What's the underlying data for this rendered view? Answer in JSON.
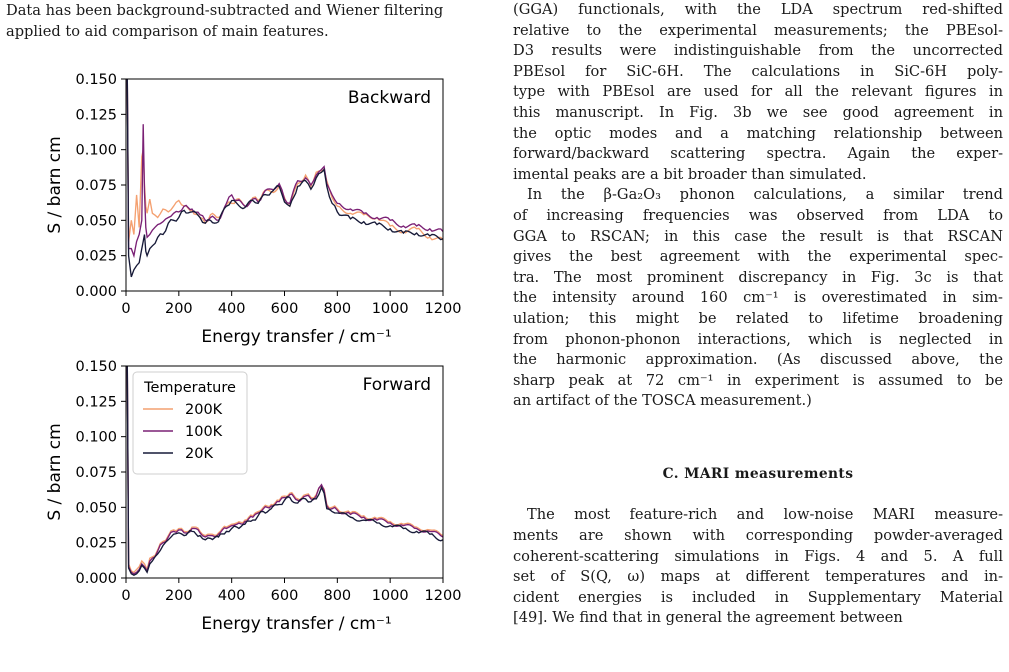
{
  "caption": {
    "partial_line": "Data has been background-subtracted and Wiener filtering",
    "line2": "applied to aid comparison of main features."
  },
  "body": {
    "para1_lines": [
      "(GGA) functionals, with the LDA spectrum red-shifted",
      "relative to the experimental measurements; the PBEsol-",
      "D3 results were indistinguishable from the uncorrected",
      "PBEsol for SiC-6H. The calculations in SiC-6H poly-",
      "type with PBEsol are used for all the relevant figures in",
      "this manuscript. In Fig. 3b we see good agreement in",
      "the optic modes and a matching relationship between",
      "forward/backward scattering spectra. Again the exper-",
      "imental peaks are a bit broader than simulated."
    ],
    "para2_lines": [
      "In the β-Ga₂O₃ phonon calculations, a similar trend",
      "of increasing frequencies was observed from LDA to",
      "GGA to RSCAN; in this case the result is that RSCAN",
      "gives the best agreement with the experimental spec-",
      "tra. The most prominent discrepancy in Fig. 3c is that",
      "the intensity around 160 cm⁻¹ is overestimated in sim-",
      "ulation; this might be related to lifetime broadening",
      "from phonon-phonon interactions, which is neglected in",
      "the harmonic approximation. (As discussed above, the",
      "sharp peak at 72 cm⁻¹ in experiment is assumed to be",
      "an artifact of the TOSCA measurement.)"
    ],
    "section_heading": "C.   MARI measurements",
    "para3_lines": [
      "The most feature-rich and low-noise MARI measure-",
      "ments are shown with corresponding powder-averaged",
      "coherent-scattering simulations in Figs. 4 and 5. A full",
      "set of S(Q, ω) maps at different temperatures and in-",
      "cident energies is included in Supplementary Material",
      "[49]. We find that in general the agreement between"
    ]
  },
  "figure": {
    "colors": {
      "200K": "#f4a070",
      "100K": "#7a2075",
      "20K": "#171a38"
    },
    "legend": {
      "title": "Temperature",
      "entries": [
        "200K",
        "100K",
        "20K"
      ]
    },
    "panels": [
      {
        "id": "backward",
        "label": "Backward",
        "xlabel": "Energy transfer / cm⁻¹",
        "ylabel": "S / barn cm",
        "xlim": [
          0,
          1200
        ],
        "ylim": [
          0,
          0.15
        ],
        "xticks": [
          "0",
          "200",
          "400",
          "600",
          "800",
          "1000",
          "1200"
        ],
        "yticks": [
          "0.000",
          "0.025",
          "0.050",
          "0.075",
          "0.100",
          "0.125",
          "0.150"
        ]
      },
      {
        "id": "forward",
        "label": "Forward",
        "xlabel": "Energy transfer / cm⁻¹",
        "ylabel": "S / barn cm",
        "xlim": [
          0,
          1200
        ],
        "ylim": [
          0,
          0.15
        ],
        "xticks": [
          "0",
          "200",
          "400",
          "600",
          "800",
          "1000",
          "1200"
        ],
        "yticks": [
          "0.000",
          "0.025",
          "0.050",
          "0.075",
          "0.100",
          "0.125",
          "0.150"
        ]
      }
    ]
  },
  "chart_data": [
    {
      "type": "line",
      "title": "Backward",
      "xlabel": "Energy transfer / cm⁻¹",
      "ylabel": "S / barn cm",
      "xlim": [
        0,
        1200
      ],
      "ylim": [
        0,
        0.15
      ],
      "grid": false,
      "x": [
        5,
        10,
        20,
        30,
        40,
        50,
        60,
        65,
        70,
        75,
        80,
        90,
        100,
        120,
        140,
        160,
        180,
        200,
        220,
        250,
        280,
        300,
        320,
        350,
        380,
        400,
        420,
        450,
        480,
        500,
        520,
        550,
        580,
        600,
        620,
        650,
        680,
        700,
        720,
        740,
        750,
        760,
        780,
        800,
        850,
        900,
        950,
        1000,
        1050,
        1100,
        1150,
        1200
      ],
      "series": [
        {
          "name": "200K",
          "values": [
            0.15,
            0.035,
            0.05,
            0.04,
            0.068,
            0.045,
            0.095,
            0.1,
            0.075,
            0.06,
            0.055,
            0.065,
            0.055,
            0.052,
            0.058,
            0.056,
            0.06,
            0.064,
            0.06,
            0.057,
            0.052,
            0.048,
            0.054,
            0.052,
            0.061,
            0.062,
            0.065,
            0.06,
            0.066,
            0.064,
            0.07,
            0.07,
            0.074,
            0.066,
            0.06,
            0.076,
            0.082,
            0.074,
            0.084,
            0.085,
            0.086,
            0.078,
            0.066,
            0.06,
            0.055,
            0.054,
            0.052,
            0.046,
            0.042,
            0.044,
            0.038,
            0.036
          ]
        },
        {
          "name": "100K",
          "values": [
            0.15,
            0.03,
            0.03,
            0.025,
            0.035,
            0.04,
            0.05,
            0.118,
            0.07,
            0.045,
            0.038,
            0.04,
            0.043,
            0.047,
            0.049,
            0.052,
            0.055,
            0.056,
            0.06,
            0.058,
            0.054,
            0.05,
            0.052,
            0.05,
            0.062,
            0.068,
            0.064,
            0.06,
            0.065,
            0.063,
            0.069,
            0.072,
            0.076,
            0.065,
            0.062,
            0.078,
            0.08,
            0.075,
            0.082,
            0.086,
            0.088,
            0.076,
            0.068,
            0.062,
            0.058,
            0.055,
            0.052,
            0.05,
            0.046,
            0.046,
            0.044,
            0.042
          ]
        },
        {
          "name": "20K",
          "values": [
            0.15,
            0.025,
            0.01,
            0.015,
            0.018,
            0.02,
            0.03,
            0.035,
            0.04,
            0.028,
            0.025,
            0.03,
            0.032,
            0.038,
            0.04,
            0.048,
            0.05,
            0.052,
            0.057,
            0.056,
            0.052,
            0.048,
            0.05,
            0.049,
            0.06,
            0.064,
            0.062,
            0.059,
            0.064,
            0.062,
            0.068,
            0.07,
            0.074,
            0.063,
            0.06,
            0.074,
            0.078,
            0.072,
            0.08,
            0.084,
            0.086,
            0.074,
            0.062,
            0.056,
            0.051,
            0.049,
            0.047,
            0.044,
            0.041,
            0.041,
            0.039,
            0.037
          ]
        }
      ]
    },
    {
      "type": "line",
      "title": "Forward",
      "xlabel": "Energy transfer / cm⁻¹",
      "ylabel": "S / barn cm",
      "xlim": [
        0,
        1200
      ],
      "ylim": [
        0,
        0.15
      ],
      "grid": false,
      "legend": "top-left",
      "x": [
        5,
        10,
        20,
        30,
        40,
        50,
        60,
        70,
        80,
        90,
        100,
        120,
        140,
        160,
        180,
        200,
        220,
        250,
        280,
        300,
        320,
        350,
        380,
        400,
        420,
        450,
        480,
        500,
        520,
        550,
        580,
        600,
        620,
        650,
        680,
        700,
        720,
        740,
        750,
        760,
        780,
        800,
        850,
        900,
        950,
        1000,
        1050,
        1100,
        1150,
        1200
      ],
      "series": [
        {
          "name": "200K",
          "values": [
            0.15,
            0.01,
            0.005,
            0.004,
            0.006,
            0.008,
            0.012,
            0.01,
            0.006,
            0.014,
            0.015,
            0.02,
            0.026,
            0.03,
            0.034,
            0.035,
            0.033,
            0.036,
            0.033,
            0.03,
            0.031,
            0.032,
            0.036,
            0.038,
            0.039,
            0.041,
            0.044,
            0.047,
            0.05,
            0.052,
            0.055,
            0.058,
            0.06,
            0.056,
            0.059,
            0.057,
            0.059,
            0.065,
            0.063,
            0.052,
            0.05,
            0.049,
            0.046,
            0.044,
            0.042,
            0.04,
            0.038,
            0.036,
            0.034,
            0.03
          ]
        },
        {
          "name": "100K",
          "values": [
            0.15,
            0.008,
            0.004,
            0.003,
            0.004,
            0.006,
            0.01,
            0.008,
            0.005,
            0.012,
            0.014,
            0.019,
            0.025,
            0.029,
            0.033,
            0.034,
            0.032,
            0.035,
            0.032,
            0.029,
            0.03,
            0.031,
            0.035,
            0.037,
            0.038,
            0.04,
            0.043,
            0.046,
            0.049,
            0.051,
            0.054,
            0.057,
            0.059,
            0.055,
            0.058,
            0.056,
            0.058,
            0.066,
            0.062,
            0.051,
            0.049,
            0.048,
            0.045,
            0.043,
            0.041,
            0.039,
            0.037,
            0.035,
            0.033,
            0.029
          ]
        },
        {
          "name": "20K",
          "values": [
            0.15,
            0.007,
            0.003,
            0.002,
            0.003,
            0.005,
            0.009,
            0.007,
            0.004,
            0.01,
            0.012,
            0.017,
            0.023,
            0.027,
            0.031,
            0.032,
            0.03,
            0.033,
            0.03,
            0.027,
            0.028,
            0.029,
            0.033,
            0.035,
            0.036,
            0.038,
            0.041,
            0.044,
            0.047,
            0.049,
            0.052,
            0.055,
            0.057,
            0.053,
            0.056,
            0.054,
            0.056,
            0.064,
            0.06,
            0.049,
            0.047,
            0.046,
            0.043,
            0.041,
            0.039,
            0.037,
            0.035,
            0.033,
            0.031,
            0.027
          ]
        }
      ]
    }
  ]
}
